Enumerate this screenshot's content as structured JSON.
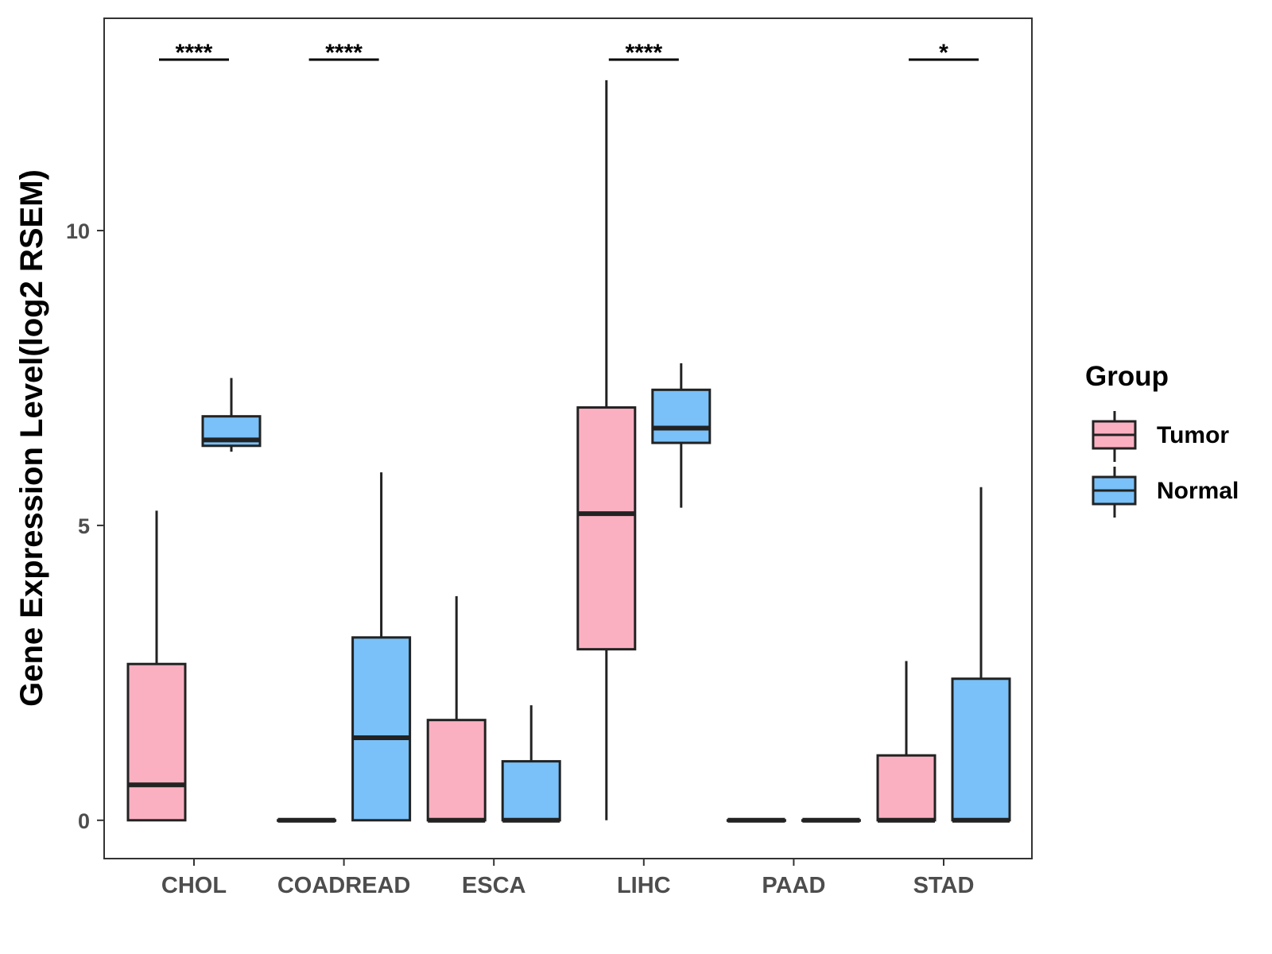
{
  "chart_data": {
    "type": "boxplot",
    "ylabel": "Gene Expression Level(log2 RSEM)",
    "xlabel": "",
    "ylim": [
      -0.65,
      13.6
    ],
    "y_ticks": [
      0,
      5,
      10
    ],
    "categories": [
      "CHOL",
      "COADREAD",
      "ESCA",
      "LIHC",
      "PAAD",
      "STAD"
    ],
    "legend": {
      "title": "Group",
      "position": "right",
      "items": [
        {
          "name": "Tumor",
          "color": "#FBB0C1"
        },
        {
          "name": "Normal",
          "color": "#79C1F8"
        }
      ]
    },
    "series": [
      {
        "name": "Tumor",
        "color": "#FBB0C1",
        "boxes": [
          {
            "category": "CHOL",
            "whisker_low": 0,
            "q1": 0,
            "median": 0.6,
            "q3": 2.65,
            "whisker_high": 5.25
          },
          {
            "category": "COADREAD",
            "whisker_low": 0,
            "q1": 0,
            "median": 0,
            "q3": 0,
            "whisker_high": 0
          },
          {
            "category": "ESCA",
            "whisker_low": 0,
            "q1": 0,
            "median": 0,
            "q3": 1.7,
            "whisker_high": 3.8
          },
          {
            "category": "LIHC",
            "whisker_low": 0,
            "q1": 2.9,
            "median": 5.2,
            "q3": 7.0,
            "whisker_high": 12.55
          },
          {
            "category": "PAAD",
            "whisker_low": 0,
            "q1": 0,
            "median": 0,
            "q3": 0,
            "whisker_high": 0
          },
          {
            "category": "STAD",
            "whisker_low": 0,
            "q1": 0,
            "median": 0,
            "q3": 1.1,
            "whisker_high": 2.7
          }
        ]
      },
      {
        "name": "Normal",
        "color": "#79C1F8",
        "boxes": [
          {
            "category": "CHOL",
            "whisker_low": 6.25,
            "q1": 6.35,
            "median": 6.45,
            "q3": 6.85,
            "whisker_high": 7.5
          },
          {
            "category": "COADREAD",
            "whisker_low": 0,
            "q1": 0,
            "median": 1.4,
            "q3": 3.1,
            "whisker_high": 5.9
          },
          {
            "category": "ESCA",
            "whisker_low": 0,
            "q1": 0,
            "median": 0,
            "q3": 1.0,
            "whisker_high": 1.95
          },
          {
            "category": "LIHC",
            "whisker_low": 5.3,
            "q1": 6.4,
            "median": 6.65,
            "q3": 7.3,
            "whisker_high": 7.75
          },
          {
            "category": "PAAD",
            "whisker_low": 0,
            "q1": 0,
            "median": 0,
            "q3": 0,
            "whisker_high": 0
          },
          {
            "category": "STAD",
            "whisker_low": 0,
            "q1": 0,
            "median": 0,
            "q3": 2.4,
            "whisker_high": 5.65
          }
        ]
      }
    ],
    "significance": [
      {
        "category": "CHOL",
        "label": "****"
      },
      {
        "category": "COADREAD",
        "label": "****"
      },
      {
        "category": "LIHC",
        "label": "****"
      },
      {
        "category": "STAD",
        "label": "*"
      }
    ]
  }
}
